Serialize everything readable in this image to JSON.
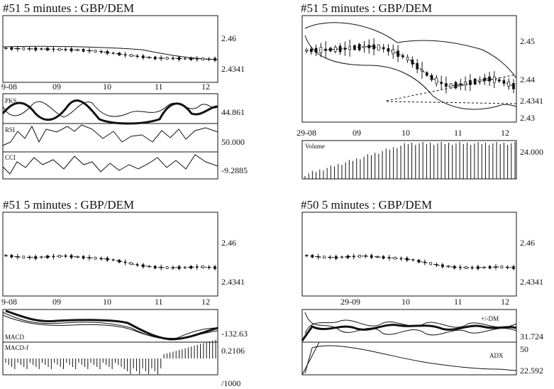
{
  "chart_data": [
    {
      "type": "candlestick",
      "title": "#51   5 minutes : GBP/DEM",
      "x_ticks": [
        "9-08",
        "09",
        "10",
        "11",
        "12"
      ],
      "y_ticks": [
        "2.46",
        "2.4341"
      ],
      "price_trend": [
        2.4515,
        2.4512,
        2.451,
        2.4508,
        2.4505,
        2.45,
        2.4492,
        2.4478,
        2.446,
        2.4445,
        2.4433,
        2.443,
        2.4428,
        2.4425,
        2.4422
      ],
      "indicators": [
        {
          "label": "PKS",
          "value": "44.861"
        },
        {
          "label": "RSI",
          "value": "50.000"
        },
        {
          "label": "CCI",
          "value": "-9.2885"
        }
      ]
    },
    {
      "type": "candlestick",
      "title": "#51   5 minutes : GBP/DEM",
      "x_ticks": [
        "29-08",
        "09",
        "10",
        "11",
        "12"
      ],
      "y_ticks": [
        "2.45",
        "2.44",
        "2.4341",
        "2.43"
      ],
      "price_trend": [
        2.4475,
        2.4476,
        2.4478,
        2.448,
        2.4484,
        2.4486,
        2.4481,
        2.4468,
        2.445,
        2.442,
        2.4395,
        2.438,
        2.4385,
        2.4392,
        2.44,
        2.4395,
        2.438
      ],
      "volume_label": "Volume",
      "volume_value": "24.000"
    },
    {
      "type": "candlestick",
      "title": "#51   5 minutes : GBP/DEM",
      "x_ticks": [
        "9-08",
        "09",
        "10",
        "11",
        "12"
      ],
      "y_ticks": [
        "2.46",
        "2.4341"
      ],
      "price_trend": [
        2.4515,
        2.4505,
        2.4502,
        2.4508,
        2.4512,
        2.4505,
        2.4498,
        2.449,
        2.447,
        2.445,
        2.4438,
        2.4434,
        2.4436,
        2.444,
        2.4435
      ],
      "indicators": [
        {
          "label": "MACD",
          "value": "-132.63"
        },
        {
          "label": "MACD-f",
          "value": "0.2106"
        }
      ],
      "footnote": "/1000"
    },
    {
      "type": "candlestick",
      "title": "#50   5 minutes : GBP/DEM",
      "x_ticks": [
        "29-09",
        "10",
        "11",
        "12"
      ],
      "y_ticks": [
        "2.46",
        "2.4341"
      ],
      "price_trend": [
        2.4515,
        2.4505,
        2.4502,
        2.4508,
        2.4512,
        2.4505,
        2.4498,
        2.449,
        2.447,
        2.445,
        2.4438,
        2.4434,
        2.4436,
        2.444,
        2.4435
      ],
      "indicators": [
        {
          "label": "+/-DM",
          "value": "31.724"
        },
        {
          "label": "ADX",
          "value": "22.592",
          "axis_value": "50"
        }
      ]
    }
  ]
}
